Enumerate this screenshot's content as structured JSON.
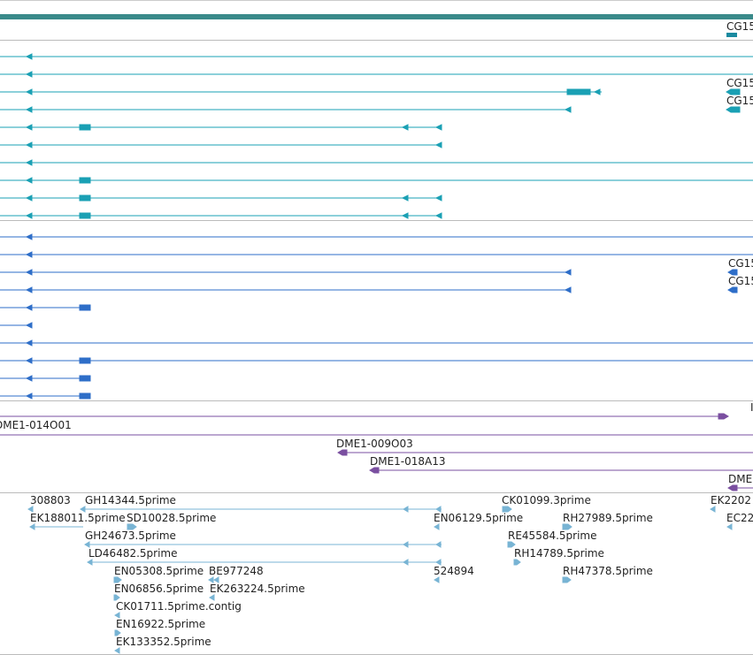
{
  "colors": {
    "teal_bar": "#3a8a8a",
    "teal_gene": "#1aa0b4",
    "blue_gene": "#2e6ec8",
    "purple_clone": "#7a4fa0",
    "est": "#78b4d4",
    "divider": "#bbbbbb"
  },
  "track_top": {
    "right_label": "CG15"
  },
  "teal_track": {
    "labels": [
      "CG15",
      "CG15"
    ]
  },
  "blue_track": {
    "labels": [
      "CG15",
      "CG15"
    ]
  },
  "clone_track": {
    "labels": [
      "DME1-014O01",
      "DME1-009O03",
      "DME1-018A13",
      "DME",
      "I"
    ]
  },
  "est_track": {
    "labels": [
      "308803",
      "GH14344.5prime",
      "CK01099.3prime",
      "EK2202",
      "EK188011.5prime",
      "SD10028.5prime",
      "EN06129.5prime",
      "RH27989.5prime",
      "EC22",
      "GH24673.5prime",
      "RE45584.5prime",
      "LD46482.5prime",
      "RH14789.5prime",
      "EN05308.5prime",
      "BE977248",
      "524894",
      "RH47378.5prime",
      "EN06856.5prime",
      "EK263224.5prime",
      "CK01711.5prime.contig",
      "EN16922.5prime",
      "EK133352.5prime"
    ]
  }
}
